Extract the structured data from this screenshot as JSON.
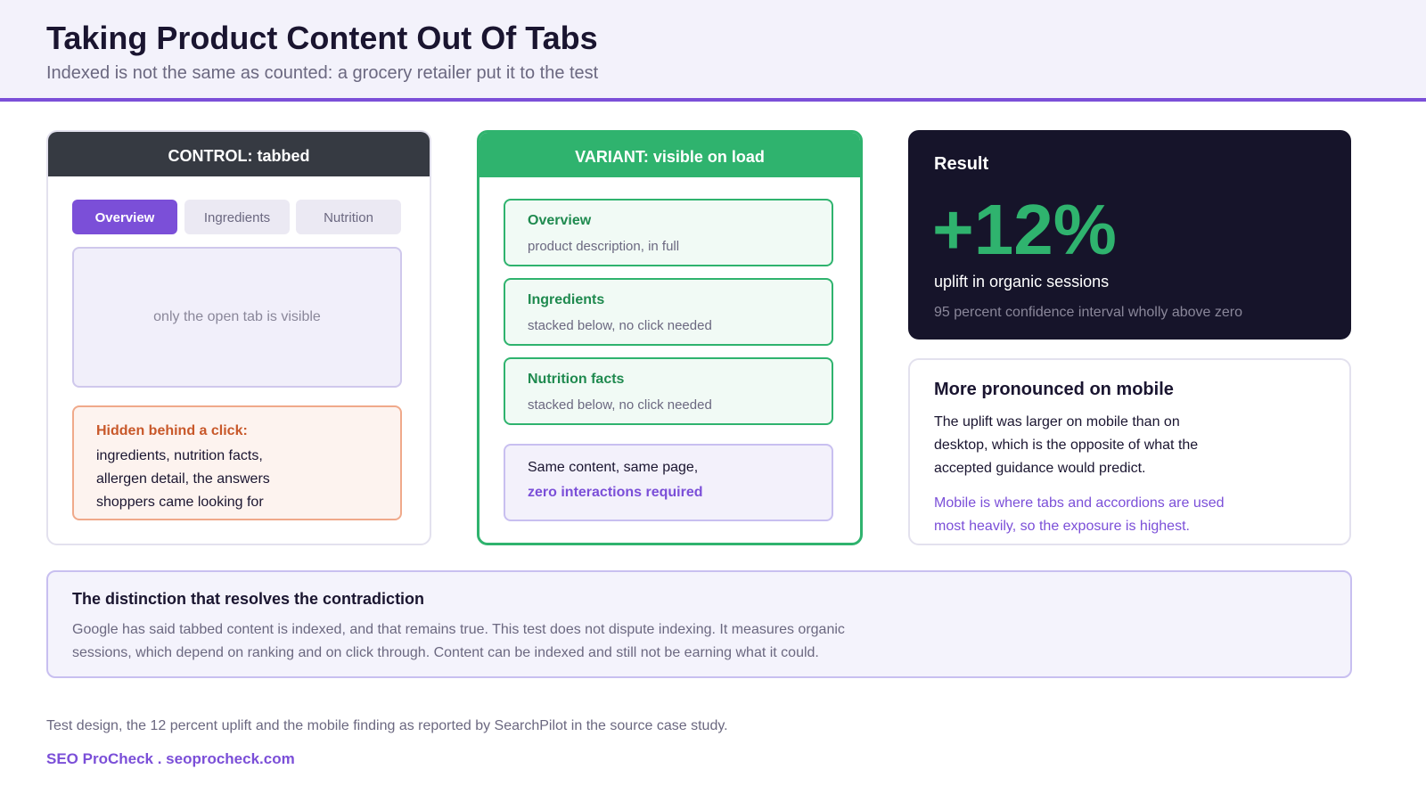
{
  "header": {
    "title": "Taking Product Content Out Of Tabs",
    "subtitle": "Indexed is not the same as counted: a grocery retailer put it to the test"
  },
  "control": {
    "heading": "CONTROL: tabbed",
    "tabs": [
      "Overview",
      "Ingredients",
      "Nutrition"
    ],
    "panel": "only the open tab is visible",
    "hidden": {
      "label": "Hidden behind a click:",
      "text": "ingredients, nutrition facts, allergen detail, the answers shoppers came looking for"
    }
  },
  "variant": {
    "heading": "VARIANT: visible on load",
    "sections": [
      {
        "title": "Overview",
        "text": "product description, in full"
      },
      {
        "title": "Ingredients",
        "text": "stacked below, no click needed"
      },
      {
        "title": "Nutrition facts",
        "text": "stacked below, no click needed"
      }
    ],
    "note": {
      "text": "Same content, same page,",
      "highlight": "zero interactions required"
    }
  },
  "result": {
    "label": "Result",
    "value": "+12%",
    "caption": "uplift in organic sessions",
    "note": "95 percent confidence interval wholly above zero"
  },
  "mobile": {
    "title": "More pronounced on mobile",
    "text": "The uplift was larger on mobile than on desktop, which is the opposite of what the accepted guidance would predict.",
    "highlight": "Mobile is where tabs and accordions are used most heavily, so the exposure is highest."
  },
  "distinction": {
    "title": "The distinction that resolves the contradiction",
    "text": "Google has said tabbed content is indexed, and that remains true. This test does not dispute indexing. It measures organic sessions, which depend on ranking and on click through. Content can be indexed and still not be earning what it could."
  },
  "footer": {
    "source": "Test design, the 12 percent uplift and the mobile finding as reported by SearchPilot in the source case study.",
    "brand": "SEO ProCheck . seoprocheck.com"
  }
}
